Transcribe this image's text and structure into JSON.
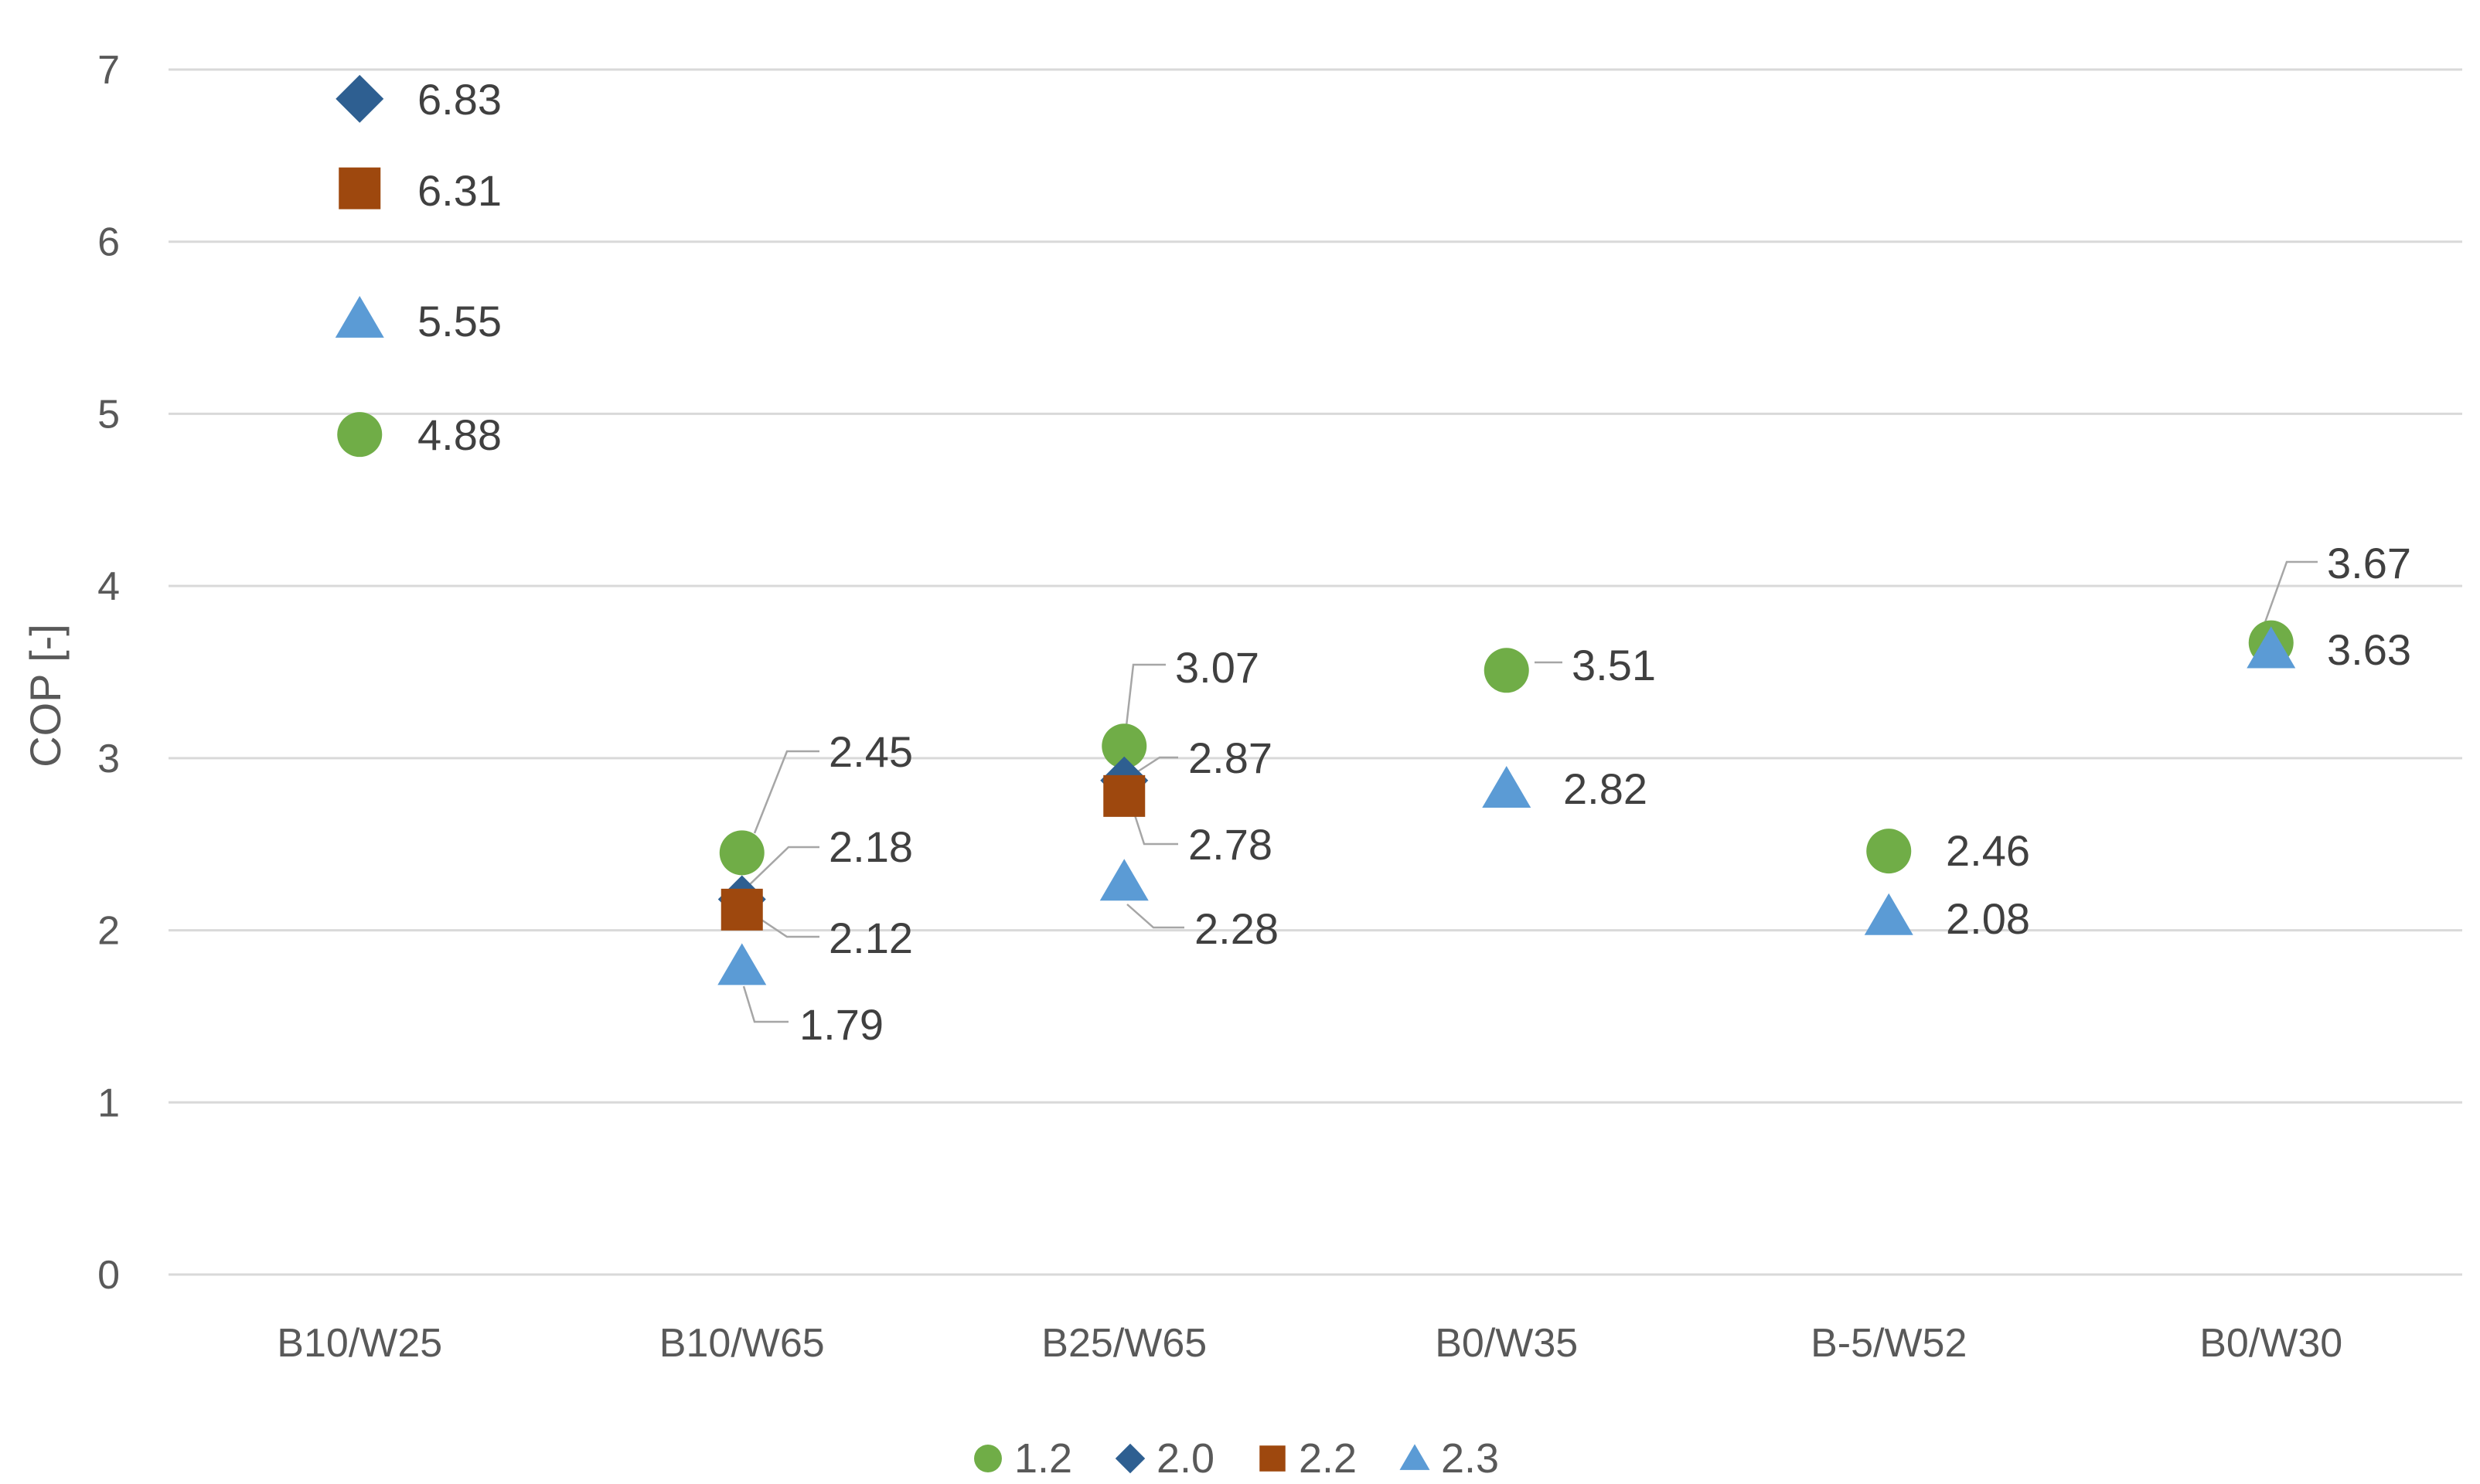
{
  "chart_data": {
    "type": "scatter",
    "title": "",
    "xlabel": "",
    "ylabel": "COP [-]",
    "ylim": [
      0,
      7
    ],
    "yticks": [
      0,
      1,
      2,
      3,
      4,
      5,
      6,
      7
    ],
    "grid": true,
    "legend_position": "bottom",
    "categories": [
      "B10/W25",
      "B10/W65",
      "B25/W65",
      "B0/W35",
      "B-5/W52",
      "B0/W30"
    ],
    "series": [
      {
        "name": "1.2",
        "marker": "circle",
        "color": "#70ad47",
        "values": [
          4.88,
          2.45,
          3.07,
          3.51,
          2.46,
          3.67
        ],
        "labels": [
          "4.88",
          "2.45",
          "3.07",
          "3.51",
          "2.46",
          "3.67"
        ]
      },
      {
        "name": "2.0",
        "marker": "diamond",
        "color": "#2e5f91",
        "values": [
          6.83,
          2.18,
          2.87,
          null,
          null,
          null
        ],
        "labels": [
          "6.83",
          "2.18",
          "2.87",
          null,
          null,
          null
        ]
      },
      {
        "name": "2.2",
        "marker": "square",
        "color": "#9e480e",
        "values": [
          6.31,
          2.12,
          2.78,
          null,
          null,
          null
        ],
        "labels": [
          "6.31",
          "2.12",
          "2.78",
          null,
          null,
          null
        ]
      },
      {
        "name": "2.3",
        "marker": "triangle",
        "color": "#5b9bd5",
        "values": [
          5.55,
          1.79,
          2.28,
          2.82,
          2.08,
          3.63
        ],
        "labels": [
          "5.55",
          "1.79",
          "2.28",
          "2.82",
          "2.08",
          "3.63"
        ]
      }
    ]
  }
}
